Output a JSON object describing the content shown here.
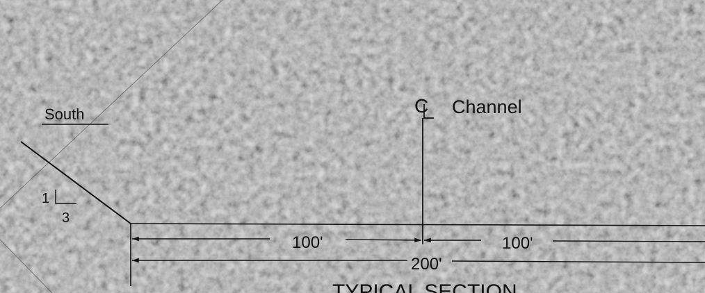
{
  "drawing": {
    "south_label": "South",
    "slope": {
      "rise": "1",
      "run": "3"
    },
    "centerline_symbol": "C",
    "centerline_label": "Channel",
    "dim_left": "100'",
    "dim_right": "100'",
    "dim_total": "200'",
    "section_title": "TYPICAL SECTION"
  },
  "colors": {
    "line": "#111111",
    "background": "#9a9a9a"
  }
}
